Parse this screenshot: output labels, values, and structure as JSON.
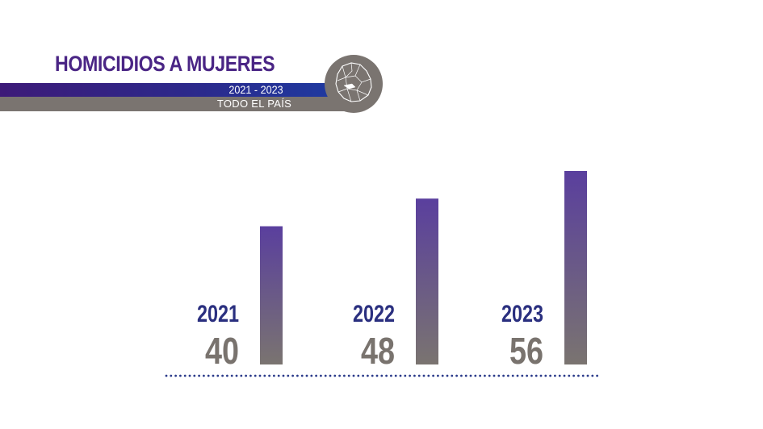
{
  "header": {
    "title": "HOMICIDIOS A MUJERES",
    "period": "2021 - 2023",
    "scope": "TODO EL PAÍS",
    "map_icon": "uruguay-map-icon"
  },
  "colors": {
    "title": "#4a2585",
    "year_label": "#2a2f7f",
    "value_label": "#79736e",
    "bar_top": "#5a3f9e",
    "bar_bottom": "#7a7470",
    "baseline_dots": "#2a3a8a"
  },
  "chart_data": {
    "type": "bar",
    "categories": [
      "2021",
      "2022",
      "2023"
    ],
    "values": [
      40,
      48,
      56
    ],
    "title": "HOMICIDIOS A MUJERES",
    "subtitle": "2021 - 2023",
    "xlabel": "",
    "ylabel": "",
    "ylim": [
      0,
      56
    ],
    "grid": false
  }
}
